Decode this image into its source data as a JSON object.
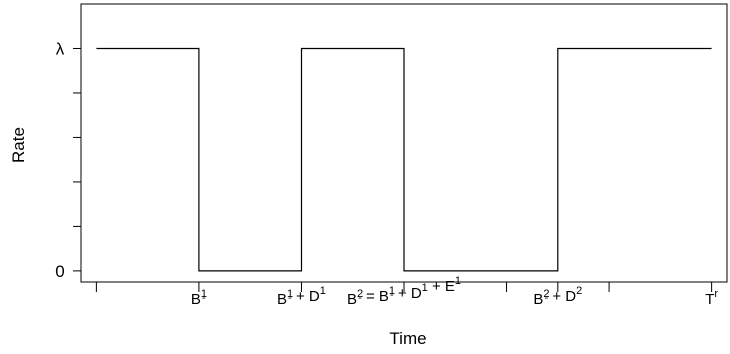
{
  "chart_data": {
    "type": "line",
    "title": "",
    "xlabel": "Time",
    "ylabel": "Rate",
    "ytick_labels": [
      {
        "value": 1,
        "base": "λ"
      },
      {
        "value": 0,
        "base": "0"
      }
    ],
    "xtick_labels": [
      {
        "x": 1,
        "parts": [
          [
            "B",
            "1",
            "-"
          ]
        ],
        "sep": []
      },
      {
        "x": 2,
        "parts": [
          [
            "B",
            "1",
            "-"
          ],
          [
            "D",
            "1",
            ""
          ]
        ],
        "sep": [
          " + "
        ]
      },
      {
        "x": 3,
        "parts": [
          [
            "B",
            "2",
            "-"
          ],
          [
            "B",
            "1",
            "-"
          ],
          [
            "D",
            "1",
            ""
          ],
          [
            "E",
            "1",
            ""
          ]
        ],
        "sep": [
          " = ",
          " + ",
          " + "
        ]
      },
      {
        "x": 4.5,
        "parts": [
          [
            "B",
            "2",
            "-"
          ],
          [
            "D",
            "2",
            ""
          ]
        ],
        "sep": [
          " + "
        ]
      },
      {
        "x": 6,
        "parts": [
          [
            "T",
            "r",
            ""
          ]
        ],
        "sep": []
      }
    ],
    "series": [
      {
        "step_points": [
          [
            0,
            1
          ],
          [
            1,
            1
          ],
          [
            1,
            0
          ],
          [
            2,
            0
          ],
          [
            2,
            1
          ],
          [
            3,
            1
          ],
          [
            3,
            0
          ],
          [
            4.5,
            0
          ],
          [
            4.5,
            1
          ],
          [
            6,
            1
          ]
        ]
      }
    ],
    "xlim": [
      -0.15,
      6.15
    ],
    "ylim": [
      -0.05,
      1.2
    ],
    "minor_xticks": [
      0,
      4,
      5
    ],
    "minor_yticks": [
      0.2,
      0.4,
      0.6,
      0.8
    ],
    "grid": false,
    "legend": "none"
  }
}
